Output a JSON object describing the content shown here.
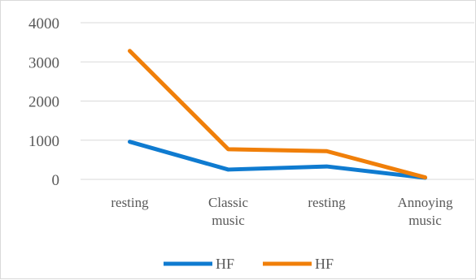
{
  "chart_data": {
    "type": "line",
    "categories": [
      [
        "resting"
      ],
      [
        "Classic",
        "music"
      ],
      [
        "resting"
      ],
      [
        "Annoying",
        "music"
      ]
    ],
    "series": [
      {
        "name": "HF",
        "color": "#0f7bd0",
        "values": [
          960,
          250,
          330,
          40
        ]
      },
      {
        "name": "HF",
        "color": "#f07f09",
        "values": [
          3280,
          770,
          720,
          50
        ]
      }
    ],
    "ylim": [
      0,
      4000
    ],
    "yticks": [
      0,
      1000,
      2000,
      3000,
      4000
    ],
    "grid": true,
    "legend_position": "bottom"
  }
}
